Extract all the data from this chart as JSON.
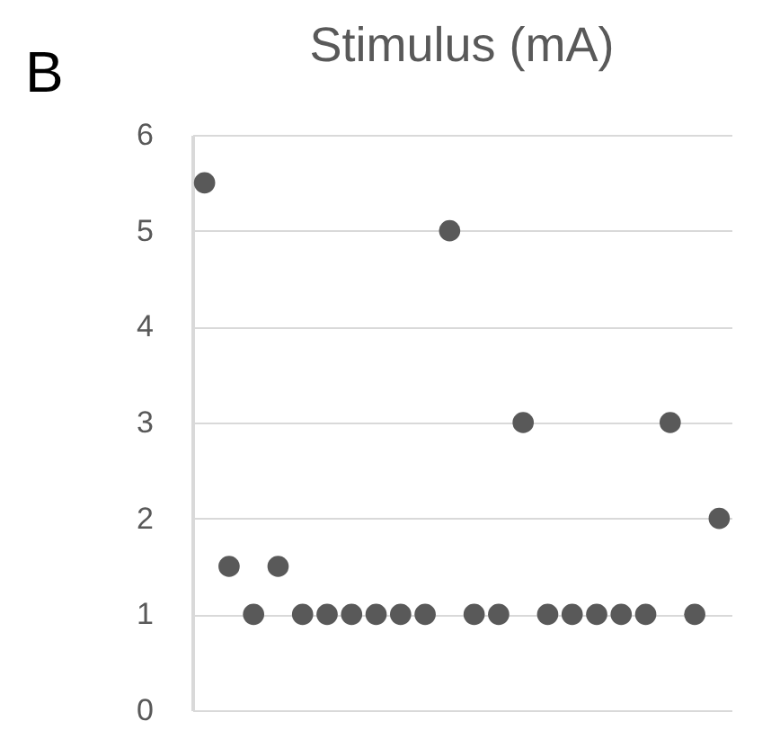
{
  "chart_data": {
    "type": "scatter",
    "title": "Stimulus (mA)",
    "annotations": [
      "B"
    ],
    "categories": [
      null,
      null,
      null,
      null,
      null,
      null,
      null,
      null,
      null,
      null,
      null,
      null,
      null,
      null,
      null,
      null,
      null,
      null,
      null,
      null,
      null,
      null
    ],
    "series": [
      {
        "color": "#595959",
        "values": [
          5.5,
          1.5,
          1,
          1.5,
          1,
          1,
          1,
          1,
          1,
          1,
          5,
          1,
          1,
          3,
          1,
          1,
          1,
          1,
          1,
          3,
          1,
          2
        ]
      }
    ],
    "ylim": [
      0,
      6
    ],
    "yticks": [
      0,
      1,
      2,
      3,
      4,
      5,
      6
    ],
    "grid": "y",
    "marker": "circle",
    "tick_labels": "y",
    "legend": false
  }
}
